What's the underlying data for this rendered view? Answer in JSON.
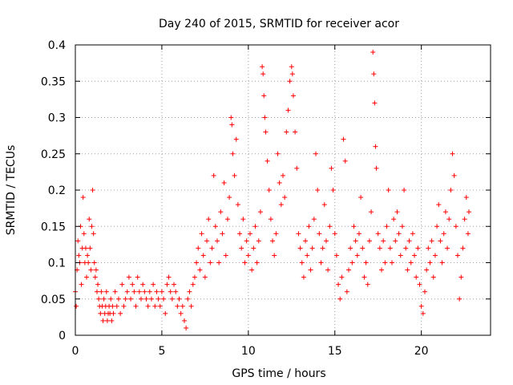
{
  "chart_data": {
    "type": "scatter",
    "title": "Day 240 of 2015, SRMTID for receiver acor",
    "xlabel": "GPS time / hours",
    "ylabel": "SRMTID / TECUs",
    "xlim": [
      0,
      24
    ],
    "ylim": [
      0,
      0.4
    ],
    "xticks": [
      "0",
      "5",
      "10",
      "15",
      "20"
    ],
    "xtick_values": [
      0,
      5,
      10,
      15,
      20
    ],
    "yticks": [
      "0",
      "0.05",
      "0.1",
      "0.15",
      "0.2",
      "0.25",
      "0.3",
      "0.35",
      "0.4"
    ],
    "ytick_values": [
      0,
      0.05,
      0.1,
      0.15,
      0.2,
      0.25,
      0.3,
      0.35,
      0.4
    ],
    "grid": true,
    "series": [
      {
        "name": "SRMTID",
        "color": "#ff0000",
        "marker": "+",
        "points": [
          [
            0.0,
            0.06
          ],
          [
            0.05,
            0.04
          ],
          [
            0.1,
            0.09
          ],
          [
            0.15,
            0.13
          ],
          [
            0.2,
            0.11
          ],
          [
            0.25,
            0.1
          ],
          [
            0.3,
            0.15
          ],
          [
            0.35,
            0.07
          ],
          [
            0.4,
            0.12
          ],
          [
            0.45,
            0.19
          ],
          [
            0.5,
            0.14
          ],
          [
            0.55,
            0.1
          ],
          [
            0.6,
            0.12
          ],
          [
            0.65,
            0.08
          ],
          [
            0.7,
            0.11
          ],
          [
            0.75,
            0.1
          ],
          [
            0.8,
            0.16
          ],
          [
            0.85,
            0.12
          ],
          [
            0.9,
            0.09
          ],
          [
            0.95,
            0.15
          ],
          [
            1.0,
            0.2
          ],
          [
            1.05,
            0.14
          ],
          [
            1.1,
            0.1
          ],
          [
            1.15,
            0.08
          ],
          [
            1.2,
            0.09
          ],
          [
            1.25,
            0.06
          ],
          [
            1.3,
            0.07
          ],
          [
            1.35,
            0.05
          ],
          [
            1.4,
            0.04
          ],
          [
            1.45,
            0.03
          ],
          [
            1.5,
            0.06
          ],
          [
            1.55,
            0.04
          ],
          [
            1.6,
            0.02
          ],
          [
            1.65,
            0.05
          ],
          [
            1.7,
            0.03
          ],
          [
            1.75,
            0.04
          ],
          [
            1.8,
            0.06
          ],
          [
            1.85,
            0.02
          ],
          [
            1.9,
            0.03
          ],
          [
            1.95,
            0.04
          ],
          [
            2.0,
            0.03
          ],
          [
            2.05,
            0.05
          ],
          [
            2.1,
            0.02
          ],
          [
            2.15,
            0.04
          ],
          [
            2.2,
            0.03
          ],
          [
            2.3,
            0.06
          ],
          [
            2.4,
            0.04
          ],
          [
            2.5,
            0.05
          ],
          [
            2.6,
            0.03
          ],
          [
            2.7,
            0.07
          ],
          [
            2.8,
            0.04
          ],
          [
            2.9,
            0.05
          ],
          [
            3.0,
            0.06
          ],
          [
            3.1,
            0.08
          ],
          [
            3.2,
            0.05
          ],
          [
            3.3,
            0.07
          ],
          [
            3.4,
            0.06
          ],
          [
            3.5,
            0.04
          ],
          [
            3.6,
            0.08
          ],
          [
            3.7,
            0.06
          ],
          [
            3.8,
            0.05
          ],
          [
            3.9,
            0.07
          ],
          [
            4.0,
            0.06
          ],
          [
            4.1,
            0.05
          ],
          [
            4.2,
            0.04
          ],
          [
            4.3,
            0.06
          ],
          [
            4.4,
            0.05
          ],
          [
            4.5,
            0.07
          ],
          [
            4.6,
            0.04
          ],
          [
            4.7,
            0.06
          ],
          [
            4.8,
            0.05
          ],
          [
            4.9,
            0.04
          ],
          [
            5.0,
            0.06
          ],
          [
            5.1,
            0.05
          ],
          [
            5.2,
            0.03
          ],
          [
            5.3,
            0.07
          ],
          [
            5.4,
            0.08
          ],
          [
            5.5,
            0.06
          ],
          [
            5.6,
            0.05
          ],
          [
            5.7,
            0.07
          ],
          [
            5.8,
            0.06
          ],
          [
            5.9,
            0.04
          ],
          [
            6.0,
            0.05
          ],
          [
            6.1,
            0.03
          ],
          [
            6.2,
            0.04
          ],
          [
            6.3,
            0.02
          ],
          [
            6.4,
            0.01
          ],
          [
            6.5,
            0.05
          ],
          [
            6.6,
            0.06
          ],
          [
            6.7,
            0.04
          ],
          [
            6.8,
            0.07
          ],
          [
            6.9,
            0.08
          ],
          [
            7.0,
            0.1
          ],
          [
            7.1,
            0.12
          ],
          [
            7.2,
            0.09
          ],
          [
            7.3,
            0.14
          ],
          [
            7.4,
            0.11
          ],
          [
            7.5,
            0.08
          ],
          [
            7.6,
            0.13
          ],
          [
            7.7,
            0.16
          ],
          [
            7.8,
            0.1
          ],
          [
            7.9,
            0.12
          ],
          [
            8.0,
            0.22
          ],
          [
            8.1,
            0.15
          ],
          [
            8.2,
            0.13
          ],
          [
            8.3,
            0.1
          ],
          [
            8.4,
            0.17
          ],
          [
            8.5,
            0.14
          ],
          [
            8.6,
            0.21
          ],
          [
            8.7,
            0.11
          ],
          [
            8.8,
            0.16
          ],
          [
            8.9,
            0.19
          ],
          [
            9.0,
            0.3
          ],
          [
            9.05,
            0.29
          ],
          [
            9.1,
            0.25
          ],
          [
            9.2,
            0.22
          ],
          [
            9.3,
            0.27
          ],
          [
            9.4,
            0.18
          ],
          [
            9.5,
            0.14
          ],
          [
            9.6,
            0.12
          ],
          [
            9.7,
            0.16
          ],
          [
            9.8,
            0.1
          ],
          [
            9.9,
            0.13
          ],
          [
            10.0,
            0.11
          ],
          [
            10.1,
            0.14
          ],
          [
            10.2,
            0.09
          ],
          [
            10.3,
            0.12
          ],
          [
            10.4,
            0.15
          ],
          [
            10.5,
            0.1
          ],
          [
            10.6,
            0.13
          ],
          [
            10.7,
            0.17
          ],
          [
            10.8,
            0.37
          ],
          [
            10.85,
            0.36
          ],
          [
            10.9,
            0.33
          ],
          [
            10.95,
            0.3
          ],
          [
            11.0,
            0.28
          ],
          [
            11.1,
            0.24
          ],
          [
            11.2,
            0.2
          ],
          [
            11.3,
            0.16
          ],
          [
            11.4,
            0.13
          ],
          [
            11.5,
            0.11
          ],
          [
            11.6,
            0.14
          ],
          [
            11.7,
            0.25
          ],
          [
            11.8,
            0.21
          ],
          [
            11.9,
            0.18
          ],
          [
            12.0,
            0.22
          ],
          [
            12.1,
            0.19
          ],
          [
            12.2,
            0.28
          ],
          [
            12.3,
            0.31
          ],
          [
            12.4,
            0.35
          ],
          [
            12.5,
            0.37
          ],
          [
            12.55,
            0.36
          ],
          [
            12.6,
            0.33
          ],
          [
            12.7,
            0.28
          ],
          [
            12.8,
            0.23
          ],
          [
            12.9,
            0.14
          ],
          [
            13.0,
            0.12
          ],
          [
            13.1,
            0.1
          ],
          [
            13.2,
            0.08
          ],
          [
            13.3,
            0.13
          ],
          [
            13.4,
            0.11
          ],
          [
            13.5,
            0.15
          ],
          [
            13.6,
            0.09
          ],
          [
            13.7,
            0.12
          ],
          [
            13.8,
            0.16
          ],
          [
            13.9,
            0.25
          ],
          [
            14.0,
            0.2
          ],
          [
            14.1,
            0.14
          ],
          [
            14.2,
            0.1
          ],
          [
            14.3,
            0.12
          ],
          [
            14.4,
            0.18
          ],
          [
            14.5,
            0.13
          ],
          [
            14.6,
            0.09
          ],
          [
            14.7,
            0.15
          ],
          [
            14.8,
            0.23
          ],
          [
            14.9,
            0.2
          ],
          [
            15.0,
            0.14
          ],
          [
            15.1,
            0.11
          ],
          [
            15.2,
            0.07
          ],
          [
            15.3,
            0.05
          ],
          [
            15.4,
            0.08
          ],
          [
            15.5,
            0.27
          ],
          [
            15.6,
            0.24
          ],
          [
            15.7,
            0.06
          ],
          [
            15.8,
            0.09
          ],
          [
            15.9,
            0.12
          ],
          [
            16.0,
            0.1
          ],
          [
            16.1,
            0.15
          ],
          [
            16.2,
            0.13
          ],
          [
            16.3,
            0.11
          ],
          [
            16.4,
            0.14
          ],
          [
            16.5,
            0.19
          ],
          [
            16.6,
            0.12
          ],
          [
            16.7,
            0.08
          ],
          [
            16.8,
            0.1
          ],
          [
            16.9,
            0.07
          ],
          [
            17.0,
            0.13
          ],
          [
            17.1,
            0.17
          ],
          [
            17.2,
            0.39
          ],
          [
            17.25,
            0.36
          ],
          [
            17.3,
            0.32
          ],
          [
            17.35,
            0.26
          ],
          [
            17.4,
            0.23
          ],
          [
            17.5,
            0.14
          ],
          [
            17.6,
            0.12
          ],
          [
            17.7,
            0.09
          ],
          [
            17.8,
            0.13
          ],
          [
            17.9,
            0.1
          ],
          [
            18.0,
            0.15
          ],
          [
            18.1,
            0.2
          ],
          [
            18.2,
            0.12
          ],
          [
            18.3,
            0.1
          ],
          [
            18.4,
            0.16
          ],
          [
            18.5,
            0.13
          ],
          [
            18.6,
            0.17
          ],
          [
            18.7,
            0.14
          ],
          [
            18.8,
            0.11
          ],
          [
            18.9,
            0.15
          ],
          [
            19.0,
            0.2
          ],
          [
            19.1,
            0.12
          ],
          [
            19.2,
            0.09
          ],
          [
            19.3,
            0.13
          ],
          [
            19.4,
            0.1
          ],
          [
            19.5,
            0.14
          ],
          [
            19.6,
            0.11
          ],
          [
            19.7,
            0.08
          ],
          [
            19.8,
            0.12
          ],
          [
            19.9,
            0.07
          ],
          [
            20.0,
            0.04
          ],
          [
            20.1,
            0.03
          ],
          [
            20.2,
            0.06
          ],
          [
            20.3,
            0.09
          ],
          [
            20.4,
            0.12
          ],
          [
            20.5,
            0.1
          ],
          [
            20.6,
            0.13
          ],
          [
            20.7,
            0.08
          ],
          [
            20.8,
            0.11
          ],
          [
            20.9,
            0.15
          ],
          [
            21.0,
            0.18
          ],
          [
            21.1,
            0.13
          ],
          [
            21.2,
            0.1
          ],
          [
            21.3,
            0.14
          ],
          [
            21.4,
            0.17
          ],
          [
            21.5,
            0.12
          ],
          [
            21.6,
            0.16
          ],
          [
            21.7,
            0.2
          ],
          [
            21.8,
            0.25
          ],
          [
            21.9,
            0.22
          ],
          [
            22.0,
            0.15
          ],
          [
            22.1,
            0.11
          ],
          [
            22.2,
            0.05
          ],
          [
            22.3,
            0.08
          ],
          [
            22.4,
            0.12
          ],
          [
            22.5,
            0.16
          ],
          [
            22.6,
            0.19
          ],
          [
            22.7,
            0.14
          ],
          [
            22.75,
            0.17
          ]
        ]
      }
    ]
  }
}
